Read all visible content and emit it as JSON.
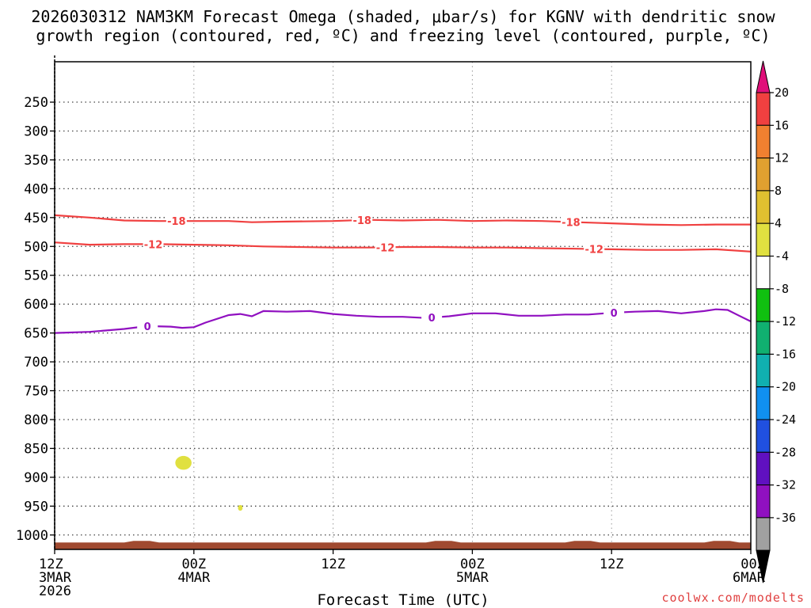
{
  "chart_data": {
    "type": "time-height cross section",
    "title_line1": "2026030312 NAM3KM Forecast Omega (shaded, μbar/s) for KGNV with dendritic snow",
    "title_line2": "growth region (contoured, red, ºC) and freezing level (contoured, purple, ºC)",
    "xlabel": "Forecast Time (UTC)",
    "credit": "coolwx.com/modelts",
    "x_range_hours": [
      0,
      60
    ],
    "y_range_hpa": [
      1025,
      180
    ],
    "y_ticks": [
      250,
      300,
      350,
      400,
      450,
      500,
      550,
      600,
      650,
      700,
      750,
      800,
      850,
      900,
      950,
      1000
    ],
    "x_ticks": [
      {
        "hour": 0,
        "lines": [
          "12Z",
          "3MAR",
          "2026"
        ]
      },
      {
        "hour": 12,
        "lines": [
          "00Z",
          "4MAR"
        ]
      },
      {
        "hour": 24,
        "lines": [
          "12Z"
        ]
      },
      {
        "hour": 36,
        "lines": [
          "00Z",
          "5MAR"
        ]
      },
      {
        "hour": 48,
        "lines": [
          "12Z"
        ]
      },
      {
        "hour": 60,
        "lines": [
          "00Z",
          "6MAR"
        ]
      }
    ],
    "grid_hours": [
      12,
      24,
      36,
      48
    ],
    "colorbar": {
      "labels": [
        "20",
        "16",
        "12",
        "8",
        "4",
        "-4",
        "-8",
        "-12",
        "-16",
        "-20",
        "-24",
        "-28",
        "-32",
        "-36"
      ],
      "colors": [
        "#f04040",
        "#f08030",
        "#e0a030",
        "#e0c030",
        "#e0e040",
        "#ffffff",
        "#10c010",
        "#10b070",
        "#10b0b0",
        "#1090f0",
        "#2050e0",
        "#6010c0",
        "#9010c0",
        "#a0a0a0"
      ],
      "top_arrow_color": "#e0107a",
      "bottom_arrow_color": "#000000"
    },
    "contours": [
      {
        "name": "-18",
        "color": "#f04040",
        "label": "-18",
        "points": [
          [
            0,
            446
          ],
          [
            3,
            450
          ],
          [
            6,
            455
          ],
          [
            9,
            456
          ],
          [
            12,
            456
          ],
          [
            15,
            456
          ],
          [
            17,
            458
          ],
          [
            20,
            457
          ],
          [
            24,
            456
          ],
          [
            27,
            454
          ],
          [
            30,
            455
          ],
          [
            33,
            454
          ],
          [
            36,
            456
          ],
          [
            39,
            455
          ],
          [
            42,
            456
          ],
          [
            45,
            458
          ],
          [
            48,
            460
          ],
          [
            51,
            462
          ],
          [
            54,
            463
          ],
          [
            57,
            462
          ],
          [
            60,
            462
          ]
        ],
        "label_hours": [
          10.5,
          26.5,
          44.5
        ]
      },
      {
        "name": "-12",
        "color": "#f04040",
        "label": "-12",
        "points": [
          [
            0,
            493
          ],
          [
            3,
            497
          ],
          [
            6,
            496
          ],
          [
            9,
            496
          ],
          [
            12,
            497
          ],
          [
            15,
            498
          ],
          [
            18,
            500
          ],
          [
            21,
            501
          ],
          [
            24,
            502
          ],
          [
            27,
            502
          ],
          [
            30,
            501
          ],
          [
            33,
            501
          ],
          [
            36,
            502
          ],
          [
            39,
            502
          ],
          [
            42,
            503
          ],
          [
            45,
            504
          ],
          [
            48,
            505
          ],
          [
            51,
            506
          ],
          [
            54,
            506
          ],
          [
            57,
            505
          ],
          [
            60,
            509
          ]
        ],
        "label_hours": [
          8.5,
          28.5,
          46.5
        ]
      },
      {
        "name": "0",
        "color": "#9010c0",
        "label": "0",
        "points": [
          [
            0,
            650
          ],
          [
            3,
            648
          ],
          [
            6,
            643
          ],
          [
            8,
            638
          ],
          [
            10,
            639
          ],
          [
            11,
            641
          ],
          [
            12,
            640
          ],
          [
            13,
            632
          ],
          [
            15,
            619
          ],
          [
            16,
            617
          ],
          [
            17,
            621
          ],
          [
            18,
            612
          ],
          [
            20,
            613
          ],
          [
            22,
            612
          ],
          [
            24,
            617
          ],
          [
            26,
            620
          ],
          [
            28,
            622
          ],
          [
            30,
            622
          ],
          [
            32,
            624
          ],
          [
            34,
            621
          ],
          [
            36,
            616
          ],
          [
            38,
            616
          ],
          [
            40,
            620
          ],
          [
            42,
            620
          ],
          [
            44,
            618
          ],
          [
            46,
            618
          ],
          [
            48,
            615
          ],
          [
            50,
            613
          ],
          [
            52,
            612
          ],
          [
            54,
            616
          ],
          [
            56,
            612
          ],
          [
            57,
            609
          ],
          [
            58,
            610
          ],
          [
            59,
            620
          ],
          [
            60,
            630
          ]
        ],
        "label_hours": [
          8.0,
          32.5,
          48.2
        ]
      }
    ],
    "omega_shading": [
      {
        "range": "4 to 8",
        "color": "#e0e040",
        "center": [
          11.1,
          875
        ],
        "radius_hours": 0.7,
        "radius_hpa": 12
      },
      {
        "range": "4 to 8",
        "color": "#e0e040",
        "center": [
          16.0,
          953
        ],
        "radius_hours": 0.2,
        "radius_hpa": 5
      }
    ],
    "terrain": {
      "color": "#a04a30",
      "top_hpa": 1013,
      "bumps_hours": [
        7.5,
        33.5,
        45.5,
        57.5
      ]
    }
  }
}
